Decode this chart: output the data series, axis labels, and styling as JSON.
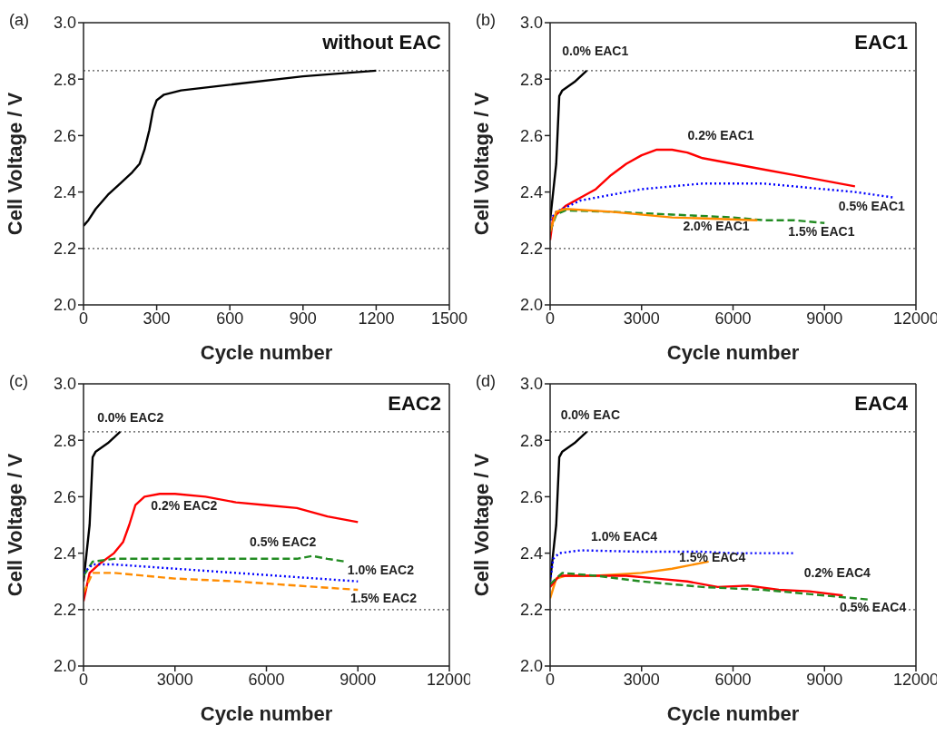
{
  "chart_data": [
    {
      "type": "line",
      "title": "without EAC",
      "xlabel": "Cycle number",
      "ylabel": "Cell Voltage / V",
      "xlim": [
        0,
        1500
      ],
      "xticks": [
        0,
        300,
        600,
        900,
        1200,
        1500
      ],
      "ylim": [
        2.0,
        3.0
      ],
      "yticks": [
        {
          "value": 2.0,
          "label": "2.0"
        },
        {
          "value": 2.2,
          "label": "2.2"
        },
        {
          "value": 2.4,
          "label": "2.4"
        },
        {
          "value": 2.6,
          "label": "2.6"
        },
        {
          "value": 2.8,
          "label": "2.8"
        },
        {
          "value": 3.0,
          "label": "3.0"
        }
      ],
      "series": [
        {
          "color": "#000000",
          "line_style": "solid",
          "x": [
            0,
            20,
            50,
            100,
            150,
            200,
            230,
            250,
            270,
            285,
            300,
            330,
            400,
            600,
            900,
            1200
          ],
          "values": [
            2.28,
            2.3,
            2.34,
            2.39,
            2.43,
            2.47,
            2.5,
            2.55,
            2.62,
            2.69,
            2.725,
            2.745,
            2.76,
            2.78,
            2.81,
            2.83
          ]
        }
      ],
      "ref_lines": [
        {
          "axis": "y",
          "value": 2.83,
          "line_style": "dotted",
          "color": "#555555"
        },
        {
          "axis": "y",
          "value": 2.2,
          "line_style": "dotted",
          "color": "#555555"
        }
      ],
      "annotations": [
        "(a)"
      ]
    },
    {
      "type": "line",
      "title": "EAC1",
      "xlabel": "Cycle number",
      "ylabel": "Cell Voltage / V",
      "xlim": [
        0,
        12000
      ],
      "xticks": [
        0,
        3000,
        6000,
        9000,
        12000
      ],
      "ylim": [
        2.0,
        3.0
      ],
      "yticks": [
        {
          "value": 2.0,
          "label": "2.0"
        },
        {
          "value": 2.2,
          "label": "2.2"
        },
        {
          "value": 2.4,
          "label": "2.4"
        },
        {
          "value": 2.6,
          "label": "2.6"
        },
        {
          "value": 2.8,
          "label": "2.8"
        },
        {
          "value": 3.0,
          "label": "3.0"
        }
      ],
      "series": [
        {
          "name": "0.0% EAC1",
          "color": "#000000",
          "line_style": "solid",
          "x": [
            0,
            100,
            200,
            300,
            400,
            800,
            1200
          ],
          "values": [
            2.3,
            2.4,
            2.5,
            2.74,
            2.76,
            2.79,
            2.83
          ]
        },
        {
          "name": "0.2% EAC1",
          "color": "#ff0000",
          "line_style": "solid",
          "x": [
            0,
            100,
            500,
            1000,
            1500,
            2000,
            2500,
            3000,
            3500,
            4000,
            4500,
            5000,
            6000,
            7000,
            8000,
            9000,
            10000
          ],
          "values": [
            2.23,
            2.31,
            2.35,
            2.38,
            2.41,
            2.46,
            2.5,
            2.53,
            2.55,
            2.55,
            2.54,
            2.52,
            2.5,
            2.48,
            2.46,
            2.44,
            2.42
          ]
        },
        {
          "name": "0.5% EAC1",
          "color": "#0000ff",
          "line_style": "dotted",
          "x": [
            0,
            200,
            1000,
            2000,
            3000,
            4000,
            5000,
            6000,
            7000,
            8000,
            9000,
            10000,
            11300
          ],
          "values": [
            2.3,
            2.33,
            2.37,
            2.39,
            2.41,
            2.42,
            2.43,
            2.43,
            2.43,
            2.42,
            2.41,
            2.4,
            2.38
          ]
        },
        {
          "name": "1.5% EAC1",
          "color": "#228b22",
          "line_style": "dashed",
          "x": [
            0,
            200,
            500,
            2000,
            4000,
            6000,
            7000,
            8000,
            9000
          ],
          "values": [
            2.26,
            2.32,
            2.335,
            2.33,
            2.32,
            2.31,
            2.3,
            2.3,
            2.29
          ]
        },
        {
          "name": "2.0% EAC1",
          "color": "#ff8c00",
          "line_style": "solid",
          "x": [
            0,
            200,
            500,
            2000,
            4000,
            6800
          ],
          "values": [
            2.26,
            2.33,
            2.34,
            2.33,
            2.31,
            2.3
          ]
        }
      ],
      "ref_lines": [
        {
          "axis": "y",
          "value": 2.83,
          "line_style": "dotted",
          "color": "#555555"
        },
        {
          "axis": "y",
          "value": 2.2,
          "line_style": "dotted",
          "color": "#555555"
        }
      ],
      "annotations": [
        "(b)"
      ]
    },
    {
      "type": "line",
      "title": "EAC2",
      "xlabel": "Cycle number",
      "ylabel": "Cell Voltage / V",
      "xlim": [
        0,
        12000
      ],
      "xticks": [
        0,
        3000,
        6000,
        9000,
        12000
      ],
      "ylim": [
        2.0,
        3.0
      ],
      "yticks": [
        {
          "value": 2.0,
          "label": "2.0"
        },
        {
          "value": 2.2,
          "label": "2.2"
        },
        {
          "value": 2.4,
          "label": "2.4"
        },
        {
          "value": 2.6,
          "label": "2.6"
        },
        {
          "value": 2.8,
          "label": "2.8"
        },
        {
          "value": 3.0,
          "label": "3.0"
        }
      ],
      "series": [
        {
          "name": "0.0% EAC2",
          "color": "#000000",
          "line_style": "solid",
          "x": [
            0,
            100,
            200,
            300,
            400,
            800,
            1200
          ],
          "values": [
            2.3,
            2.4,
            2.5,
            2.74,
            2.76,
            2.79,
            2.83
          ]
        },
        {
          "name": "0.2% EAC2",
          "color": "#ff0000",
          "line_style": "solid",
          "x": [
            0,
            200,
            500,
            1000,
            1300,
            1500,
            1700,
            2000,
            2500,
            3000,
            4000,
            5000,
            6000,
            7000,
            8000,
            9000
          ],
          "values": [
            2.23,
            2.33,
            2.36,
            2.4,
            2.44,
            2.5,
            2.57,
            2.6,
            2.61,
            2.61,
            2.6,
            2.58,
            2.57,
            2.56,
            2.53,
            2.51
          ]
        },
        {
          "name": "0.5% EAC2",
          "color": "#228b22",
          "line_style": "dashed",
          "x": [
            0,
            300,
            1000,
            3000,
            5000,
            7000,
            7500,
            8000,
            8600
          ],
          "values": [
            2.32,
            2.37,
            2.38,
            2.38,
            2.38,
            2.38,
            2.39,
            2.38,
            2.37
          ]
        },
        {
          "name": "1.0% EAC2",
          "color": "#0000ff",
          "line_style": "dotted",
          "x": [
            0,
            300,
            1000,
            3000,
            5000,
            7000,
            9000
          ],
          "values": [
            2.33,
            2.36,
            2.36,
            2.345,
            2.33,
            2.315,
            2.3
          ]
        },
        {
          "name": "1.5% EAC2",
          "color": "#ff8c00",
          "line_style": "dashed",
          "x": [
            0,
            300,
            1000,
            3000,
            5000,
            7000,
            9000
          ],
          "values": [
            2.26,
            2.33,
            2.33,
            2.31,
            2.3,
            2.285,
            2.27
          ]
        }
      ],
      "ref_lines": [
        {
          "axis": "y",
          "value": 2.83,
          "line_style": "dotted",
          "color": "#555555"
        },
        {
          "axis": "y",
          "value": 2.2,
          "line_style": "dotted",
          "color": "#555555"
        }
      ],
      "annotations": [
        "(c)"
      ]
    },
    {
      "type": "line",
      "title": "EAC4",
      "xlabel": "Cycle number",
      "ylabel": "Cell Voltage / V",
      "xlim": [
        0,
        12000
      ],
      "xticks": [
        0,
        3000,
        6000,
        9000,
        12000
      ],
      "ylim": [
        2.0,
        3.0
      ],
      "yticks": [
        {
          "value": 2.0,
          "label": "2.0"
        },
        {
          "value": 2.2,
          "label": "2.2"
        },
        {
          "value": 2.4,
          "label": "2.4"
        },
        {
          "value": 2.6,
          "label": "2.6"
        },
        {
          "value": 2.8,
          "label": "2.8"
        },
        {
          "value": 3.0,
          "label": "3.0"
        }
      ],
      "series": [
        {
          "name": "0.0% EAC",
          "color": "#000000",
          "line_style": "solid",
          "x": [
            0,
            100,
            200,
            300,
            400,
            800,
            1200
          ],
          "values": [
            2.3,
            2.4,
            2.5,
            2.74,
            2.76,
            2.79,
            2.83
          ]
        },
        {
          "name": "1.0% EAC4",
          "color": "#0000ff",
          "line_style": "dotted",
          "x": [
            0,
            100,
            300,
            1000,
            3000,
            5000,
            6000,
            8000
          ],
          "values": [
            2.3,
            2.38,
            2.4,
            2.41,
            2.405,
            2.405,
            2.4,
            2.4
          ]
        },
        {
          "name": "1.5% EAC4",
          "color": "#ff8c00",
          "line_style": "solid",
          "x": [
            0,
            200,
            500,
            1500,
            3000,
            4000,
            5200
          ],
          "values": [
            2.24,
            2.31,
            2.32,
            2.32,
            2.33,
            2.345,
            2.37
          ]
        },
        {
          "name": "0.2% EAC4",
          "color": "#ff0000",
          "line_style": "solid",
          "x": [
            0,
            300,
            1000,
            2500,
            3500,
            4500,
            5500,
            6500,
            7500,
            8500,
            9600
          ],
          "values": [
            2.28,
            2.32,
            2.32,
            2.32,
            2.31,
            2.3,
            2.28,
            2.285,
            2.27,
            2.265,
            2.25
          ]
        },
        {
          "name": "0.5% EAC4",
          "color": "#228b22",
          "line_style": "dashed",
          "x": [
            0,
            400,
            1500,
            3000,
            5000,
            7000,
            9000,
            10500
          ],
          "values": [
            2.29,
            2.33,
            2.32,
            2.3,
            2.28,
            2.27,
            2.25,
            2.235
          ]
        }
      ],
      "ref_lines": [
        {
          "axis": "y",
          "value": 2.83,
          "line_style": "dotted",
          "color": "#555555"
        },
        {
          "axis": "y",
          "value": 2.2,
          "line_style": "dotted",
          "color": "#555555"
        }
      ],
      "annotations": [
        "(d)"
      ]
    }
  ]
}
